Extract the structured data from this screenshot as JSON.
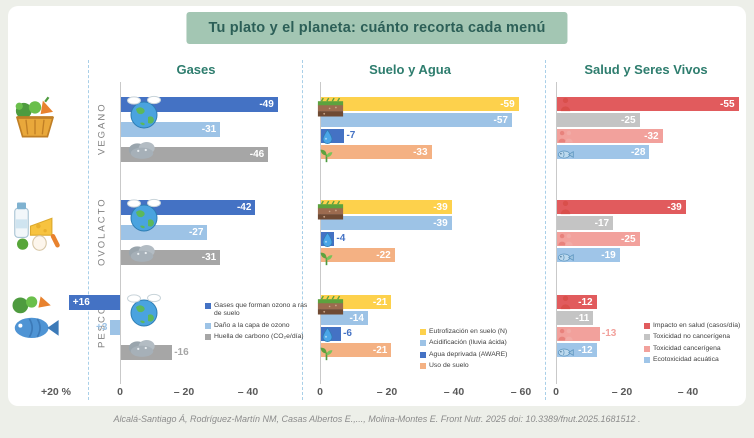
{
  "page": {
    "title": "Tu plato y el planeta: cuánto recorta cada menú",
    "footer": "Alcalá-Santiago Á, Rodríguez-Martín NM, Casas Albertos E.,..., Molina-Montes E. Front Nutr. 2025 doi: 10.3389/fnut.2025.1681512 ."
  },
  "diets": [
    {
      "label": "VEGANO",
      "icon": "veggies-basket"
    },
    {
      "label": "OVOLACTO",
      "icon": "dairy-eggs"
    },
    {
      "label": "PESCO",
      "icon": "fish-veg"
    }
  ],
  "chart_data": [
    {
      "type": "bar",
      "orientation": "horizontal",
      "title": "Gases",
      "unit": "%",
      "axis": {
        "ticks": [
          {
            "label": "+20 %",
            "v": 20
          },
          {
            "label": "0",
            "v": 0
          },
          {
            "label": "– 20",
            "v": -20
          },
          {
            "label": "– 40",
            "v": -40
          }
        ]
      },
      "series": [
        {
          "name": "Gases que forman ozono a ras de suelo",
          "color": "#4472c4"
        },
        {
          "name": "Daño a la capa de ozono",
          "color": "#9dc3e6"
        },
        {
          "name": "Huella de carbono (CO₂e/día)",
          "color": "#a6a6a6"
        }
      ],
      "icons": [
        "earth-clouds",
        "co2-cloud"
      ],
      "rows": [
        {
          "diet": "VEGANO",
          "values": [
            -49,
            -31,
            -46
          ],
          "label_outside": [
            false,
            false,
            false
          ]
        },
        {
          "diet": "OVOLACTO",
          "values": [
            -42,
            -27,
            -31
          ],
          "label_outside": [
            false,
            false,
            false
          ]
        },
        {
          "diet": "PESCO",
          "values": [
            16,
            3,
            -16
          ],
          "label_outside": [
            false,
            true,
            true
          ]
        }
      ]
    },
    {
      "type": "bar",
      "orientation": "horizontal",
      "title": "Suelo y Agua",
      "unit": "%",
      "axis": {
        "ticks": [
          {
            "label": "0",
            "v": 0
          },
          {
            "label": "– 20",
            "v": -20
          },
          {
            "label": "– 40",
            "v": -40
          },
          {
            "label": "– 60",
            "v": -60
          }
        ]
      },
      "series": [
        {
          "name": "Eutrofización en suelo (N)",
          "color": "#fdd14c"
        },
        {
          "name": "Acidificación (lluvia ácida)",
          "color": "#9dc3e6"
        },
        {
          "name": "Agua deprivada (AWARE)",
          "color": "#4472c4"
        },
        {
          "name": "Uso de suelo",
          "color": "#f4b183"
        }
      ],
      "icons": [
        "soil-layers",
        "water-drop",
        "sprout"
      ],
      "rows": [
        {
          "diet": "VEGANO",
          "values": [
            -59,
            -57,
            -7,
            -33
          ],
          "label_outside": [
            false,
            false,
            true,
            false
          ]
        },
        {
          "diet": "OVOLACTO",
          "values": [
            -39,
            -39,
            -4,
            -22
          ],
          "label_outside": [
            false,
            false,
            true,
            false
          ]
        },
        {
          "diet": "PESCO",
          "values": [
            -21,
            -14,
            -6,
            -21
          ],
          "label_outside": [
            false,
            false,
            true,
            false
          ]
        }
      ]
    },
    {
      "type": "bar",
      "orientation": "horizontal",
      "title": "Salud y Seres Vivos",
      "unit": "%",
      "axis": {
        "ticks": [
          {
            "label": "0",
            "v": 0
          },
          {
            "label": "– 20",
            "v": -20
          },
          {
            "label": "– 40",
            "v": -40
          }
        ]
      },
      "series": [
        {
          "name": "Impacto en salud (casos/día)",
          "color": "#e15b5d"
        },
        {
          "name": "Toxicidad no cancerígena",
          "color": "#c4c4c4"
        },
        {
          "name": "Toxicidad cancerígena",
          "color": "#f2a19c"
        },
        {
          "name": "Ecotoxicidad acuática",
          "color": "#9fc5e8"
        }
      ],
      "icons": [
        "person-red",
        "people-pink",
        "fish-blue"
      ],
      "rows": [
        {
          "diet": "VEGANO",
          "values": [
            -55,
            -25,
            -32,
            -28
          ],
          "label_outside": [
            false,
            false,
            false,
            false
          ]
        },
        {
          "diet": "OVOLACTO",
          "values": [
            -39,
            -17,
            -25,
            -19
          ],
          "label_outside": [
            false,
            false,
            false,
            false
          ]
        },
        {
          "diet": "PESCO",
          "values": [
            -12,
            -11,
            -13,
            -12
          ],
          "label_outside": [
            false,
            false,
            true,
            false
          ]
        }
      ]
    }
  ]
}
